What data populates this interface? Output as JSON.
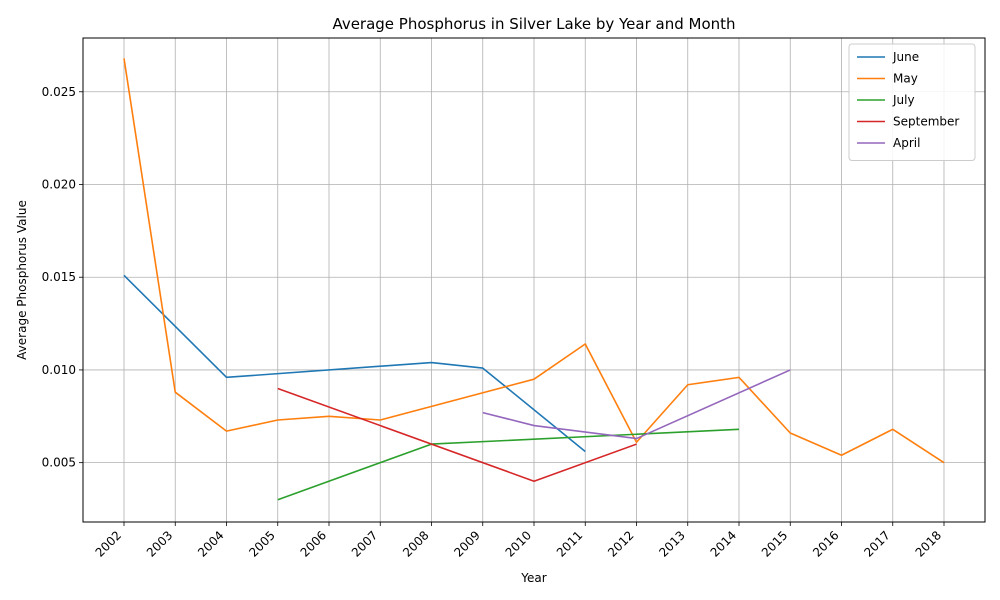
{
  "chart_data": {
    "type": "line",
    "title": "Average Phosphorus in Silver Lake by Year and Month",
    "xlabel": "Year",
    "ylabel": "Average Phosphorus Value",
    "xlim": [
      2001.2,
      2018.8
    ],
    "ylim": [
      0.0018,
      0.0279
    ],
    "x_ticks": [
      2002,
      2003,
      2004,
      2005,
      2006,
      2007,
      2008,
      2009,
      2010,
      2011,
      2012,
      2013,
      2014,
      2015,
      2016,
      2017,
      2018
    ],
    "x_tick_labels": [
      "2002",
      "2003",
      "2004",
      "2005",
      "2006",
      "2007",
      "2008",
      "2009",
      "2010",
      "2011",
      "2012",
      "2013",
      "2014",
      "2015",
      "2016",
      "2017",
      "2018"
    ],
    "y_ticks": [
      0.005,
      0.01,
      0.015,
      0.02,
      0.025
    ],
    "y_tick_labels": [
      "0.005",
      "0.010",
      "0.015",
      "0.020",
      "0.025"
    ],
    "grid": true,
    "legend_position": "top-right",
    "series": [
      {
        "name": "June",
        "color": "#1f77b4",
        "x": [
          2002,
          2004,
          2008,
          2009,
          2011
        ],
        "y": [
          0.0151,
          0.0096,
          0.0104,
          0.0101,
          0.0056
        ]
      },
      {
        "name": "May",
        "color": "#ff7f0e",
        "x": [
          2002,
          2003,
          2004,
          2005,
          2006,
          2007,
          2010,
          2011,
          2012,
          2013,
          2014,
          2015,
          2016,
          2017,
          2018
        ],
        "y": [
          0.0268,
          0.0088,
          0.0067,
          0.0073,
          0.0075,
          0.0073,
          0.0095,
          0.0114,
          0.0061,
          0.0092,
          0.0096,
          0.0066,
          0.0054,
          0.0068,
          0.005
        ]
      },
      {
        "name": "July",
        "color": "#2ca02c",
        "x": [
          2005,
          2008,
          2014
        ],
        "y": [
          0.003,
          0.006,
          0.0068
        ]
      },
      {
        "name": "September",
        "color": "#d62728",
        "x": [
          2005,
          2010,
          2012
        ],
        "y": [
          0.009,
          0.004,
          0.006
        ]
      },
      {
        "name": "April",
        "color": "#9467bd",
        "x": [
          2009,
          2010,
          2012,
          2015
        ],
        "y": [
          0.0077,
          0.007,
          0.0063,
          0.01
        ]
      }
    ]
  }
}
